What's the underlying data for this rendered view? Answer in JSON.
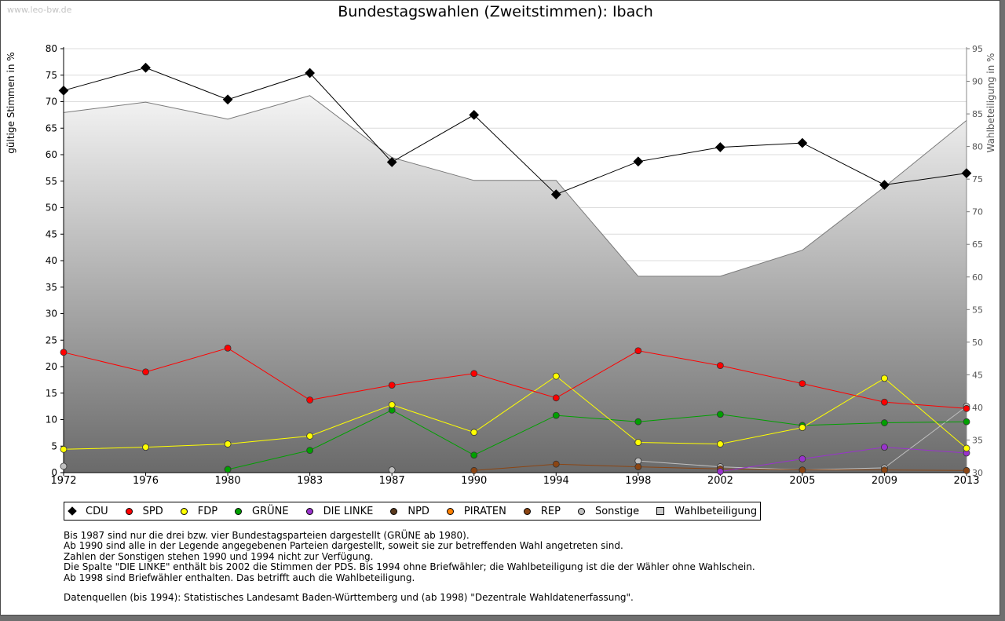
{
  "watermark": "www.leo-bw.de",
  "chart_data": {
    "type": "line",
    "title": "Bundestagswahlen (Zweitstimmen): Ibach",
    "ylabel": "gültige Stimmen in %",
    "ylabel_right": "Wahlbeteiligung in %",
    "ylim": [
      0,
      80
    ],
    "ylim_right": [
      30,
      95
    ],
    "y_ticks": [
      0,
      5,
      10,
      15,
      20,
      25,
      30,
      35,
      40,
      45,
      50,
      55,
      60,
      65,
      70,
      75,
      80
    ],
    "y_ticks_right": [
      30,
      35,
      40,
      45,
      50,
      55,
      60,
      65,
      70,
      75,
      80,
      85,
      90,
      95
    ],
    "categories": [
      "1972",
      "1976",
      "1980",
      "1983",
      "1987",
      "1990",
      "1994",
      "1998",
      "2002",
      "2005",
      "2009",
      "2013"
    ],
    "series": [
      {
        "name": "Wahlbeteiligung",
        "axis": "right",
        "kind": "area",
        "color": "#cccccc",
        "values": [
          85.2,
          86.8,
          84.2,
          87.8,
          78.3,
          74.8,
          74.8,
          60.1,
          60.1,
          64.1,
          73.8,
          84.0
        ]
      },
      {
        "name": "Sonstige",
        "color": "#c0c0c0",
        "values": [
          1.2,
          null,
          0.6,
          null,
          0.5,
          null,
          null,
          2.2,
          1.1,
          0.5,
          0.9,
          12.5
        ]
      },
      {
        "name": "REP",
        "color": "#8b4513",
        "values": [
          null,
          null,
          null,
          null,
          null,
          0.4,
          1.6,
          1.1,
          0.7,
          0.5,
          0.5,
          0.4
        ]
      },
      {
        "name": "PIRATEN",
        "color": "#ff8000",
        "values": [
          null,
          null,
          null,
          null,
          null,
          null,
          null,
          null,
          null,
          null,
          null,
          null
        ]
      },
      {
        "name": "NPD",
        "color": "#5a3a1e",
        "values": [
          null,
          null,
          null,
          null,
          null,
          null,
          null,
          null,
          null,
          null,
          null,
          null
        ]
      },
      {
        "name": "DIE LINKE",
        "color": "#9933cc",
        "values": [
          null,
          null,
          null,
          null,
          null,
          null,
          null,
          null,
          0.2,
          2.6,
          4.8,
          3.7
        ]
      },
      {
        "name": "GRÜNE",
        "color": "#00a000",
        "values": [
          null,
          null,
          0.6,
          4.2,
          11.8,
          3.3,
          10.8,
          9.6,
          11.0,
          8.9,
          9.4,
          9.6
        ]
      },
      {
        "name": "FDP",
        "color": "#ffff00",
        "values": [
          4.4,
          4.8,
          5.4,
          6.9,
          12.8,
          7.6,
          18.2,
          5.7,
          5.4,
          8.5,
          17.8,
          4.6
        ]
      },
      {
        "name": "SPD",
        "color": "#ff0000",
        "values": [
          22.7,
          19.0,
          23.5,
          13.7,
          16.5,
          18.7,
          14.1,
          23.0,
          20.2,
          16.8,
          13.3,
          12.1
        ]
      },
      {
        "name": "CDU",
        "color": "#000000",
        "values": [
          72.1,
          76.4,
          70.4,
          75.4,
          58.6,
          67.5,
          52.5,
          58.7,
          61.4,
          62.2,
          54.3,
          56.5
        ]
      }
    ]
  },
  "legend": [
    {
      "label": "CDU",
      "color": "#000000"
    },
    {
      "label": "SPD",
      "color": "#ff0000"
    },
    {
      "label": "FDP",
      "color": "#ffff00"
    },
    {
      "label": "GRÜNE",
      "color": "#00a000"
    },
    {
      "label": "DIE LINKE",
      "color": "#9933cc"
    },
    {
      "label": "NPD",
      "color": "#5a3a1e"
    },
    {
      "label": "PIRATEN",
      "color": "#ff8000"
    },
    {
      "label": "REP",
      "color": "#8b4513"
    },
    {
      "label": "Sonstige",
      "color": "#c0c0c0"
    },
    {
      "label": "Wahlbeteiligung",
      "color": "#cccccc",
      "square": true
    }
  ],
  "notes": [
    "Bis 1987 sind nur die drei bzw. vier Bundestagsparteien dargestellt (GRÜNE ab 1980).",
    "Ab 1990 sind alle in der Legende angegebenen Parteien dargestellt, soweit sie zur betreffenden Wahl angetreten sind.",
    "Zahlen der Sonstigen stehen 1990 und 1994 nicht zur Verfügung.",
    "Die Spalte \"DIE LINKE\" enthält bis 2002 die Stimmen der PDS. Bis 1994 ohne Briefwähler; die Wahlbeteiligung ist die der Wähler ohne Wahlschein.",
    "Ab 1998 sind Briefwähler enthalten. Das betrifft auch die Wahlbeteiligung."
  ],
  "source": "Datenquellen (bis 1994): Statistisches Landesamt Baden-Württemberg und (ab 1998) \"Dezentrale Wahldatenerfassung\"."
}
